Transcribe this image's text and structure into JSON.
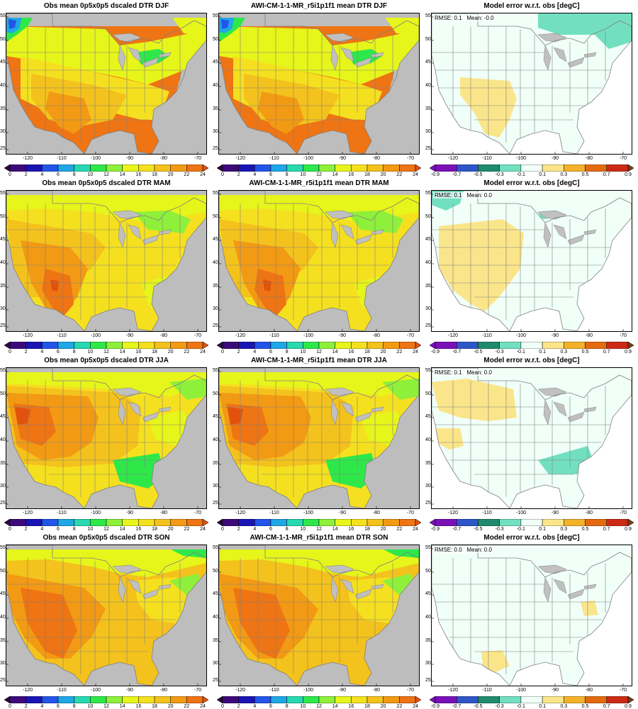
{
  "panels": [
    {
      "title": "Obs mean 0p5x0p5 dscaled DTR DJF",
      "kind": "abs",
      "scene": "winter"
    },
    {
      "title": "AWI-CM-1-1-MR_r5i1p1f1 mean DTR DJF",
      "kind": "abs",
      "scene": "winter"
    },
    {
      "title": "Model error w.r.t. obs [degC]",
      "kind": "err",
      "scene": "err_djf",
      "stats": "RMSE: 0.1   Mean: -0.0"
    },
    {
      "title": "Obs mean 0p5x0p5 dscaled DTR MAM",
      "kind": "abs",
      "scene": "spring"
    },
    {
      "title": "AWI-CM-1-1-MR_r5i1p1f1 mean DTR MAM",
      "kind": "abs",
      "scene": "spring"
    },
    {
      "title": "Model error w.r.t. obs [degC]",
      "kind": "err",
      "scene": "err_mam",
      "stats": "RMSE: 0.1   Mean: 0.0"
    },
    {
      "title": "Obs mean 0p5x0p5 dscaled DTR JJA",
      "kind": "abs",
      "scene": "summer"
    },
    {
      "title": "AWI-CM-1-1-MR_r5i1p1f1 mean DTR JJA",
      "kind": "abs",
      "scene": "summer"
    },
    {
      "title": "Model error w.r.t. obs [degC]",
      "kind": "err",
      "scene": "err_jja",
      "stats": "RMSE: 0.1   Mean: 0.0"
    },
    {
      "title": "Obs mean 0p5x0p5 dscaled DTR SON",
      "kind": "abs",
      "scene": "autumn"
    },
    {
      "title": "AWI-CM-1-1-MR_r5i1p1f1 mean DTR SON",
      "kind": "abs",
      "scene": "autumn"
    },
    {
      "title": "Model error w.r.t. obs [degC]",
      "kind": "err",
      "scene": "err_son",
      "stats": "RMSE: 0.0   Mean: 0.0"
    }
  ],
  "lat_ticks": [
    "55",
    "50",
    "45",
    "40",
    "35",
    "30",
    "25"
  ],
  "lon_ticks": [
    "-120",
    "-110",
    "-100",
    "-90",
    "-80",
    "-70"
  ],
  "abs_colorbar": {
    "labels": [
      "0",
      "2",
      "4",
      "6",
      "8",
      "10",
      "12",
      "14",
      "16",
      "18",
      "20",
      "22",
      "24"
    ],
    "colors": [
      "#2a0a3c",
      "#3d0a7a",
      "#1a14b4",
      "#2255e8",
      "#1fa7e6",
      "#27d8b0",
      "#2ee84a",
      "#8ef03a",
      "#e6f51a",
      "#f5e020",
      "#f4c21c",
      "#f29a14",
      "#ee7414",
      "#e0520e"
    ]
  },
  "err_colorbar": {
    "labels": [
      "-0.9",
      "-0.7",
      "-0.5",
      "-0.3",
      "-0.1",
      "0.1",
      "0.3",
      "0.5",
      "0.7",
      "0.9"
    ],
    "colors": [
      "#7a10b8",
      "#7a10b8",
      "#2f56c8",
      "#1f8a6e",
      "#72e0c0",
      "#f0fff8",
      "#fbe58a",
      "#f3b22a",
      "#e46a10",
      "#cc2a16",
      "#7a3a12"
    ]
  },
  "colors": {
    "land_gray": "#bdbdbd",
    "border": "#808080",
    "water_gray": "#c0c0c0"
  }
}
